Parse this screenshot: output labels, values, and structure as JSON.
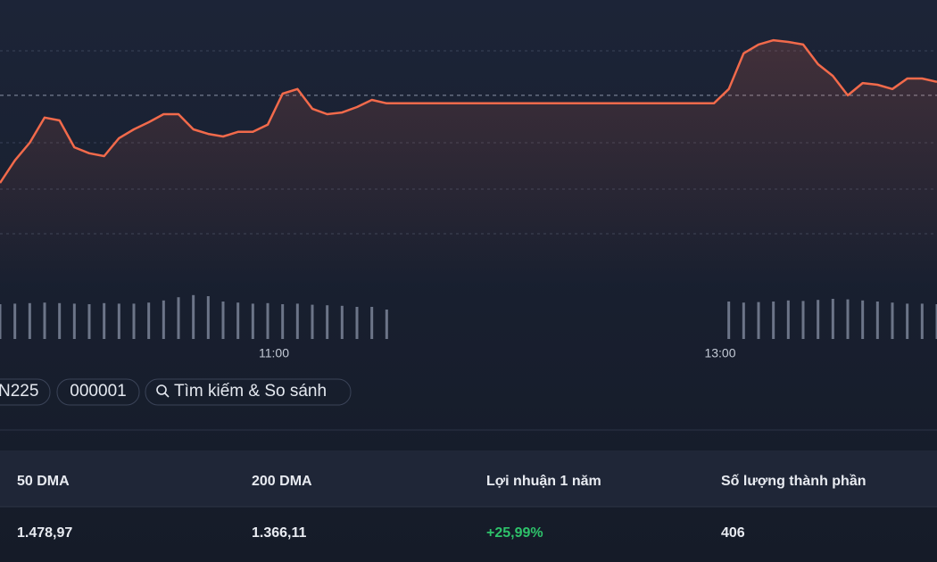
{
  "chart": {
    "type": "line",
    "color": "#f26a4b",
    "values": [
      35.9,
      43.8,
      50,
      58.8,
      57.8,
      48.4,
      46.3,
      45.3,
      51.6,
      54.7,
      57.2,
      60,
      60,
      54.7,
      53.1,
      52.2,
      53.8,
      53.8,
      56.3,
      67.2,
      68.8,
      61.9,
      60,
      60.6,
      62.5,
      65,
      63.8,
      63.8,
      63.8,
      63.8,
      63.8,
      63.8,
      63.8,
      63.8,
      63.8,
      63.8,
      63.8,
      63.8,
      63.8,
      63.8,
      63.8,
      63.8,
      63.8,
      63.8,
      63.8,
      63.8,
      63.8,
      63.8,
      63.8,
      68.8,
      81.3,
      84.4,
      85.9,
      85.3,
      84.4,
      77.5,
      73.4,
      66.6,
      70.9,
      70.3,
      68.8,
      72.5,
      72.5,
      71.3
    ],
    "xlim": [
      0,
      63
    ],
    "xticks": [
      {
        "value": 18.42,
        "label": "11:00"
      },
      {
        "value": 48.42,
        "label": "13:00"
      }
    ],
    "ylim": [
      0,
      100
    ],
    "reference": 66.6,
    "volume": [
      65,
      66,
      67,
      68,
      67,
      66,
      65,
      67,
      66,
      66,
      68,
      72,
      78,
      82,
      80,
      70,
      68,
      66,
      67,
      65,
      66,
      64,
      63,
      62,
      60,
      60,
      55,
      null,
      null,
      null,
      null,
      null,
      null,
      null,
      null,
      null,
      null,
      null,
      null,
      null,
      null,
      null,
      null,
      null,
      null,
      null,
      null,
      null,
      null,
      70,
      68,
      69,
      70,
      72,
      71,
      73,
      75,
      74,
      72,
      70,
      68,
      66,
      66,
      65
    ],
    "volume_lim": [
      0,
      100
    ]
  },
  "chips": [
    "N225",
    "000001",
    "Tìm kiếm & So sánh"
  ],
  "table": {
    "headers": [
      "50 DMA",
      "200 DMA",
      "Lợi nhuận 1 năm",
      "Số lượng thành phần"
    ],
    "rows": [
      [
        "1.478,97",
        "1.366,11",
        "+25,99%",
        "406"
      ]
    ]
  }
}
